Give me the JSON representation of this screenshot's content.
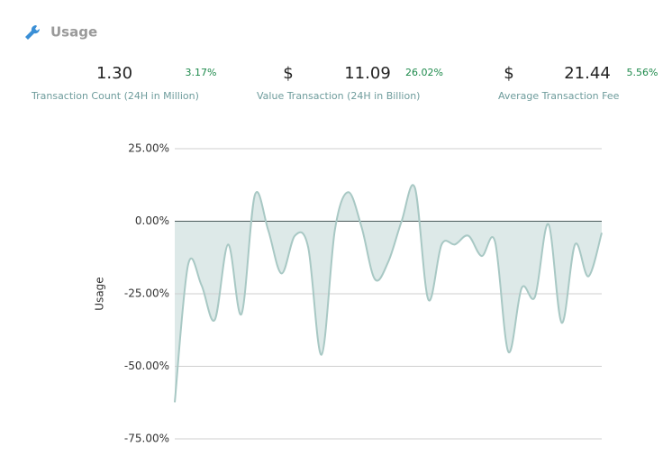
{
  "header": {
    "title": "Usage"
  },
  "stats": [
    {
      "value": "1.30",
      "change": "3.17%",
      "label": "Transaction Count (24H in Million)"
    },
    {
      "currency": "$",
      "value": "11.09",
      "change": "26.02%",
      "label": "Value Transaction (24H in Billion)"
    },
    {
      "currency": "$",
      "value": "21.44",
      "change": "5.56%",
      "label": "Average Transaction Fee"
    }
  ],
  "chart_data": {
    "type": "area",
    "y_label": "Usage",
    "color": "#a8c8c4",
    "fill": "#dde9e8",
    "values": [
      -62.4,
      -15,
      -22,
      -34,
      -8,
      -32,
      9,
      -3,
      -18,
      -5,
      -9,
      -46,
      -3,
      10,
      -2,
      -20,
      -14,
      0,
      11.5,
      -27,
      -8,
      -8,
      -5,
      -12,
      -7,
      -45,
      -23,
      -26,
      -1,
      -35,
      -8,
      -19,
      -4
    ],
    "ylim": [
      -75,
      25
    ],
    "yticks": [
      {
        "value": -75,
        "label": "-75.00%"
      },
      {
        "value": -50,
        "label": "-50.00%"
      },
      {
        "value": -25,
        "label": "-25.00%"
      },
      {
        "value": 0,
        "label": "0.00%"
      },
      {
        "value": 25,
        "label": "25.00%"
      }
    ],
    "grid": true
  }
}
